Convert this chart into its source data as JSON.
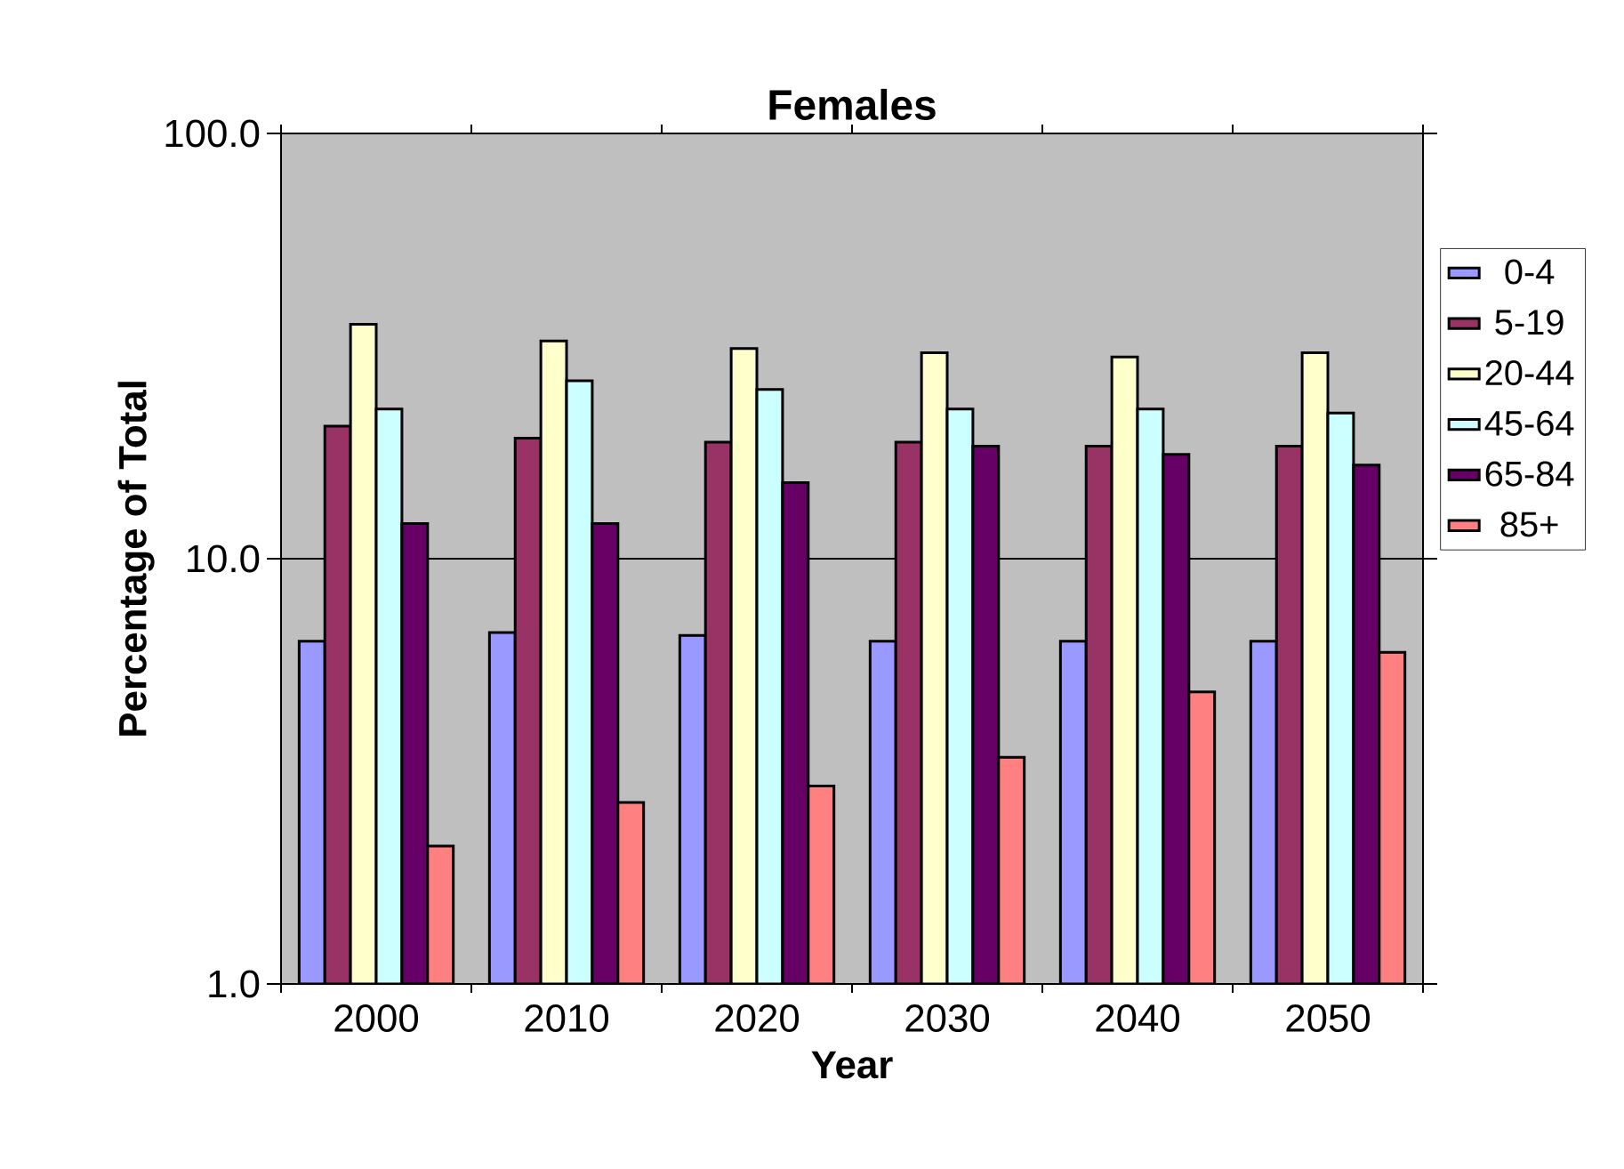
{
  "chart_data": {
    "type": "bar",
    "title": "Females",
    "xlabel": "Year",
    "ylabel": "Percentage of Total",
    "categories": [
      "2000",
      "2010",
      "2020",
      "2030",
      "2040",
      "2050"
    ],
    "series": [
      {
        "name": "0-4",
        "color": "#9999ff",
        "values": [
          6.4,
          6.7,
          6.6,
          6.4,
          6.4,
          6.4
        ]
      },
      {
        "name": "5-19",
        "color": "#993366",
        "values": [
          20.5,
          19.2,
          18.8,
          18.8,
          18.4,
          18.4
        ]
      },
      {
        "name": "20-44",
        "color": "#ffffcc",
        "values": [
          35.6,
          32.5,
          31.2,
          30.5,
          29.8,
          30.5
        ]
      },
      {
        "name": "45-64",
        "color": "#ccffff",
        "values": [
          22.5,
          26.2,
          25.0,
          22.5,
          22.5,
          22.0
        ]
      },
      {
        "name": "65-84",
        "color": "#660066",
        "values": [
          12.1,
          12.1,
          15.1,
          18.4,
          17.6,
          16.6
        ]
      },
      {
        "name": "85+",
        "color": "#ff8080",
        "values": [
          2.11,
          2.67,
          2.92,
          3.41,
          4.86,
          6.02
        ]
      }
    ],
    "ylim": [
      1,
      100
    ],
    "yticks": [
      {
        "value": 1,
        "label": "1.0"
      },
      {
        "value": 10,
        "label": "10.0"
      },
      {
        "value": 100,
        "label": "100.0"
      }
    ],
    "log": "y",
    "grid": "y",
    "legend": "right"
  }
}
